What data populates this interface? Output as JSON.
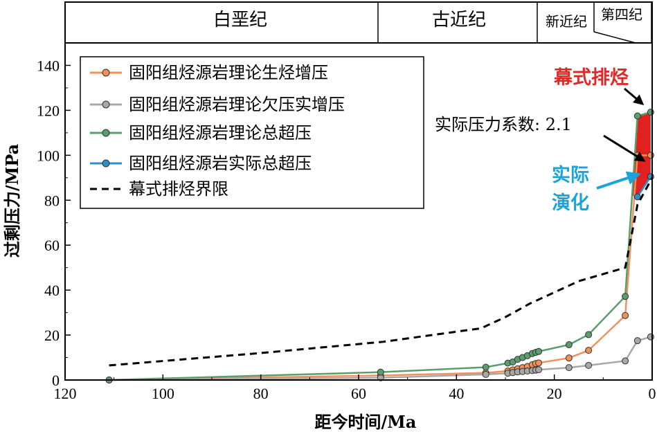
{
  "chart_data": {
    "type": "line",
    "xlabel": "距今时间/Ma",
    "ylabel": "过剩压力/MPa",
    "xlim": [
      120,
      0
    ],
    "ylim": [
      0,
      150
    ],
    "x_ticks": [
      "120",
      "100",
      "80",
      "60",
      "40",
      "20",
      "0"
    ],
    "y_ticks": [
      "0",
      "20",
      "40",
      "60",
      "80",
      "100",
      "120",
      "140"
    ],
    "periods": [
      "白垩纪",
      "古近纪",
      "新近纪",
      "第四纪"
    ],
    "legend_position": "top-left",
    "series": [
      {
        "name": "固阳组烃源岩理论生烃增压",
        "color": "#f0905a",
        "marker": true,
        "points": [
          [
            111,
            0
          ],
          [
            55.5,
            2.0
          ],
          [
            34,
            3.2
          ],
          [
            29.5,
            4.0
          ],
          [
            28.5,
            4.5
          ],
          [
            27.5,
            5.0
          ],
          [
            26.5,
            5.5
          ],
          [
            25.5,
            6.0
          ],
          [
            24.5,
            6.8
          ],
          [
            23.8,
            7.3
          ],
          [
            23.2,
            7.6
          ],
          [
            17,
            9.8
          ],
          [
            13,
            13.2
          ],
          [
            5.5,
            28.7
          ],
          [
            3,
            100
          ],
          [
            0.3,
            100
          ]
        ]
      },
      {
        "name": "固阳组烃源岩理论欠压实增压",
        "color": "#a8a8a8",
        "marker": true,
        "points": [
          [
            111,
            0
          ],
          [
            55.5,
            1.0
          ],
          [
            34,
            2.5
          ],
          [
            29.5,
            3.0
          ],
          [
            28.5,
            3.3
          ],
          [
            27.5,
            3.6
          ],
          [
            26.5,
            3.8
          ],
          [
            25.5,
            4.0
          ],
          [
            24.5,
            4.2
          ],
          [
            23.8,
            4.4
          ],
          [
            23.2,
            4.6
          ],
          [
            17,
            5.5
          ],
          [
            13,
            6.5
          ],
          [
            5.5,
            8.5
          ],
          [
            3,
            17.5
          ],
          [
            0.3,
            19.2
          ]
        ]
      },
      {
        "name": "固阳组烃源岩理论总超压",
        "color": "#5a9e6e",
        "marker": true,
        "points": [
          [
            111,
            0
          ],
          [
            55.5,
            3.5
          ],
          [
            34,
            5.7
          ],
          [
            29.5,
            7.5
          ],
          [
            28.5,
            8.0
          ],
          [
            27.5,
            9.2
          ],
          [
            26.5,
            10.0
          ],
          [
            25.5,
            10.8
          ],
          [
            24.5,
            11.8
          ],
          [
            23.8,
            12.3
          ],
          [
            23.2,
            12.7
          ],
          [
            17,
            15.7
          ],
          [
            13,
            20.2
          ],
          [
            5.5,
            37.2
          ],
          [
            3,
            117.5
          ],
          [
            0.3,
            119.2
          ]
        ]
      },
      {
        "name": "固阳组烃源岩实际总超压",
        "color": "#2e8fc4",
        "marker": true,
        "points": [
          [
            3,
            81.5
          ],
          [
            0.3,
            90.5
          ]
        ]
      },
      {
        "name": "幕式排烃界限",
        "color": "#000000",
        "style": "dashed",
        "marker": false,
        "points": [
          [
            111,
            6.5
          ],
          [
            80,
            12
          ],
          [
            55,
            17
          ],
          [
            35,
            23
          ],
          [
            30,
            28
          ],
          [
            25,
            34
          ],
          [
            15,
            44
          ],
          [
            5.5,
            50
          ],
          [
            3,
            78
          ],
          [
            0,
            90
          ]
        ]
      }
    ],
    "annotations": {
      "episodic_expulsion": "幕式排烃",
      "pressure_coefficient": "实际压力系数: 2.1",
      "actual_evolution_line1": "实际",
      "actual_evolution_line2": "演化"
    },
    "colors": {
      "episodic_fill": "#e32020",
      "episodic_text": "#e02828",
      "evolution_text": "#1aa3dd",
      "evolution_arrow": "#1aa3dd"
    }
  }
}
